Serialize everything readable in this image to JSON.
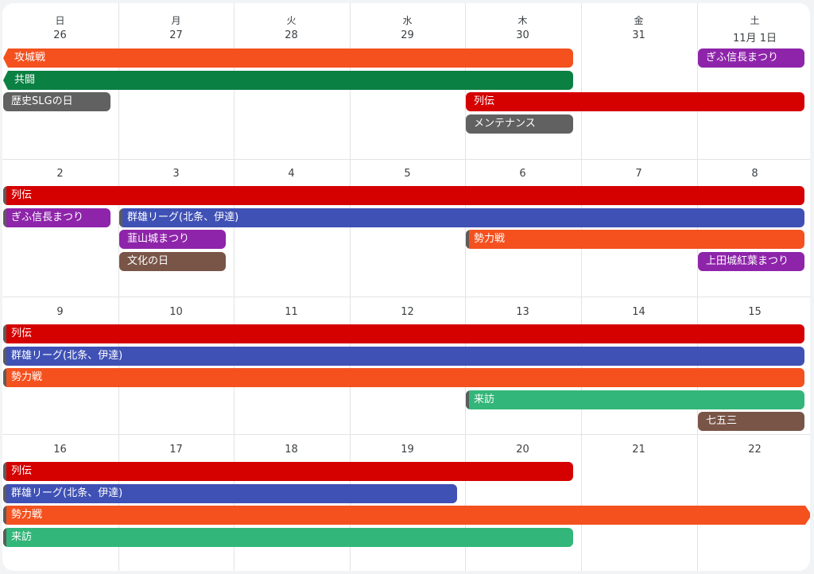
{
  "weekdays": [
    "日",
    "月",
    "火",
    "水",
    "木",
    "金",
    "土"
  ],
  "weeks": [
    [
      "26",
      "27",
      "28",
      "29",
      "30",
      "31",
      "11月 1日"
    ],
    [
      "2",
      "3",
      "4",
      "5",
      "6",
      "7",
      "8"
    ],
    [
      "9",
      "10",
      "11",
      "12",
      "13",
      "14",
      "15"
    ],
    [
      "16",
      "17",
      "18",
      "19",
      "20",
      "21",
      "22"
    ]
  ],
  "colors": {
    "orange": "#f4511e",
    "dark_green": "#0b8043",
    "gray": "#616161",
    "red": "#d50000",
    "purple": "#8e24aa",
    "blue": "#3f51b5",
    "brown": "#795548",
    "green": "#33b679"
  },
  "events": [
    {
      "title": "攻城戦",
      "week": 0,
      "start": 0,
      "end": 4,
      "row": 0,
      "color": "orange",
      "cont_left": true
    },
    {
      "title": "共闘",
      "week": 0,
      "start": 0,
      "end": 4,
      "row": 1,
      "color": "dark_green",
      "cont_left": true
    },
    {
      "title": "歴史SLGの日",
      "week": 0,
      "start": 0,
      "end": 0,
      "row": 2,
      "color": "gray"
    },
    {
      "title": "列伝",
      "week": 0,
      "start": 4,
      "end": 6,
      "row": 2,
      "color": "red"
    },
    {
      "title": "メンテナンス",
      "week": 0,
      "start": 4,
      "end": 4,
      "row": 3,
      "color": "gray"
    },
    {
      "title": "ぎふ信長まつり",
      "week": 0,
      "start": 6,
      "end": 6,
      "row": 0,
      "color": "purple"
    },
    {
      "title": "列伝",
      "week": 1,
      "start": 0,
      "end": 6,
      "row": 0,
      "color": "red",
      "strip": true
    },
    {
      "title": "ぎふ信長まつり",
      "week": 1,
      "start": 0,
      "end": 0,
      "row": 1,
      "color": "purple",
      "strip": true
    },
    {
      "title": "群雄リーグ(北条、伊達)",
      "week": 1,
      "start": 1,
      "end": 6,
      "row": 1,
      "color": "blue",
      "strip": true
    },
    {
      "title": "韮山城まつり",
      "week": 1,
      "start": 1,
      "end": 1,
      "row": 2,
      "color": "purple"
    },
    {
      "title": "勢力戦",
      "week": 1,
      "start": 4,
      "end": 6,
      "row": 2,
      "color": "orange",
      "strip": true
    },
    {
      "title": "文化の日",
      "week": 1,
      "start": 1,
      "end": 1,
      "row": 3,
      "color": "brown"
    },
    {
      "title": "上田城紅葉まつり",
      "week": 1,
      "start": 6,
      "end": 6,
      "row": 3,
      "color": "purple"
    },
    {
      "title": "列伝",
      "week": 2,
      "start": 0,
      "end": 6,
      "row": 0,
      "color": "red",
      "strip": true
    },
    {
      "title": "群雄リーグ(北条、伊達)",
      "week": 2,
      "start": 0,
      "end": 6,
      "row": 1,
      "color": "blue",
      "strip": true
    },
    {
      "title": "勢力戦",
      "week": 2,
      "start": 0,
      "end": 6,
      "row": 2,
      "color": "orange",
      "strip": true
    },
    {
      "title": "来訪",
      "week": 2,
      "start": 4,
      "end": 6,
      "row": 3,
      "color": "green",
      "strip": true
    },
    {
      "title": "七五三",
      "week": 2,
      "start": 6,
      "end": 6,
      "row": 4,
      "color": "brown"
    },
    {
      "title": "列伝",
      "week": 3,
      "start": 0,
      "end": 4,
      "row": 0,
      "color": "red",
      "strip": true
    },
    {
      "title": "群雄リーグ(北条、伊達)",
      "week": 3,
      "start": 0,
      "end": 3,
      "row": 1,
      "color": "blue",
      "strip": true
    },
    {
      "title": "勢力戦",
      "week": 3,
      "start": 0,
      "end": 6,
      "row": 2,
      "color": "orange",
      "strip": true,
      "cont_right": true
    },
    {
      "title": "来訪",
      "week": 3,
      "start": 0,
      "end": 4,
      "row": 3,
      "color": "green",
      "strip": true
    }
  ]
}
